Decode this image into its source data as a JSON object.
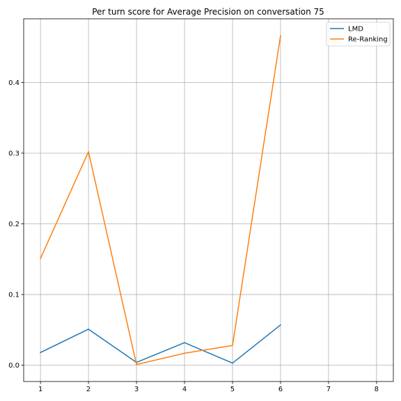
{
  "chart_data": {
    "type": "line",
    "title": "Per turn score for Average Precision on conversation 75",
    "xlabel": "",
    "ylabel": "",
    "x_ticks": [
      1,
      2,
      3,
      4,
      5,
      6,
      7,
      8
    ],
    "y_ticks": [
      0.0,
      0.1,
      0.2,
      0.3,
      0.4
    ],
    "y_tick_labels": [
      "0.0",
      "0.1",
      "0.2",
      "0.3",
      "0.4"
    ],
    "xlim": [
      0.65,
      8.35
    ],
    "ylim": [
      -0.023,
      0.49
    ],
    "grid": true,
    "legend_position": "top-right",
    "series": [
      {
        "name": "LMD",
        "color": "#1f77b4",
        "x": [
          1,
          2,
          3,
          4,
          5,
          6
        ],
        "values": [
          0.018,
          0.051,
          0.004,
          0.032,
          0.003,
          0.057
        ]
      },
      {
        "name": "Re-Ranking",
        "color": "#ff7f0e",
        "x": [
          1,
          2,
          3,
          4,
          5,
          6
        ],
        "values": [
          0.151,
          0.302,
          0.001,
          0.017,
          0.028,
          0.466
        ]
      }
    ]
  }
}
